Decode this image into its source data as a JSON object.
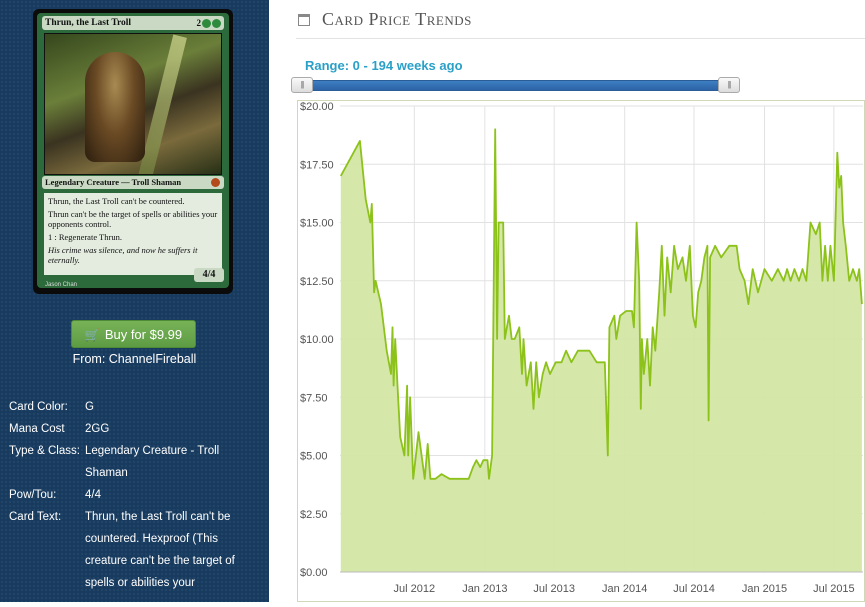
{
  "card": {
    "name": "Thrun, the Last Troll",
    "mana_cost_display": "2",
    "type_line": "Legendary Creature — Troll Shaman",
    "rules_text_1": "Thrun, the Last Troll can't be countered.",
    "rules_text_2": "Thrun can't be the target of spells or abilities your opponents control.",
    "rules_text_3": "1 : Regenerate Thrun.",
    "flavor_text": "His crime was silence, and now he suffers it eternally.",
    "power_toughness": "4/4",
    "artist": "Jason Chan"
  },
  "buy": {
    "label": "Buy for $9.99",
    "icon": "shopping-cart-icon",
    "color": "#6aa84f"
  },
  "from": "From: ChannelFireball",
  "details": [
    {
      "label": "Card Color:",
      "value": "G"
    },
    {
      "label": "Mana Cost",
      "value": "2GG"
    },
    {
      "label": "Type & Class:",
      "value": "Legendary Creature - Troll Shaman"
    },
    {
      "label": "Pow/Tou:",
      "value": "4/4"
    },
    {
      "label": "Card Text:",
      "value": "Thrun, the Last Troll can't be countered. Hexproof (This creature can't be the target of spells or abilities your"
    }
  ],
  "panel": {
    "title": "Card Price Trends",
    "icon": "calendar-icon"
  },
  "range": {
    "label": "Range: 0 - 194 weeks ago",
    "min": 0,
    "max": 194
  },
  "colors": {
    "sidebar": "#173a5e",
    "accent": "#2aa0c8",
    "line": "#8cc21a",
    "fill": "#d3e6a4",
    "button": "#6aa84f"
  },
  "chart_data": {
    "type": "area",
    "title": "",
    "xlabel": "",
    "ylabel": "",
    "ylim": [
      0,
      20
    ],
    "xlim": [
      "2011-12-20",
      "2015-09-15"
    ],
    "y_ticks": [
      "$20.00",
      "$17.50",
      "$15.00",
      "$12.50",
      "$10.00",
      "$7.50",
      "$5.00",
      "$2.50",
      "$0.00"
    ],
    "x_ticks": [
      {
        "label": "Jul 2012",
        "date": "2012-07-01"
      },
      {
        "label": "Jan 2013",
        "date": "2013-01-01"
      },
      {
        "label": "Jul 2013",
        "date": "2013-07-01"
      },
      {
        "label": "Jan 2014",
        "date": "2014-01-01"
      },
      {
        "label": "Jul 2014",
        "date": "2014-07-01"
      },
      {
        "label": "Jan 2015",
        "date": "2015-01-01"
      },
      {
        "label": "Jul 2015",
        "date": "2015-07-01"
      }
    ],
    "grid": true,
    "series": [
      {
        "values": [
          [
            "2011-12-22",
            17.0
          ],
          [
            "2012-02-10",
            18.5
          ],
          [
            "2012-02-25",
            16.0
          ],
          [
            "2012-03-08",
            15.0
          ],
          [
            "2012-03-12",
            15.8
          ],
          [
            "2012-03-18",
            12.0
          ],
          [
            "2012-03-22",
            12.5
          ],
          [
            "2012-04-05",
            11.5
          ],
          [
            "2012-04-20",
            9.5
          ],
          [
            "2012-05-01",
            8.5
          ],
          [
            "2012-05-05",
            10.5
          ],
          [
            "2012-05-08",
            8.0
          ],
          [
            "2012-05-12",
            10.0
          ],
          [
            "2012-05-18",
            8.0
          ],
          [
            "2012-05-25",
            5.8
          ],
          [
            "2012-06-05",
            5.0
          ],
          [
            "2012-06-12",
            8.0
          ],
          [
            "2012-06-15",
            5.0
          ],
          [
            "2012-06-20",
            7.5
          ],
          [
            "2012-06-28",
            4.0
          ],
          [
            "2012-07-05",
            5.0
          ],
          [
            "2012-07-12",
            6.0
          ],
          [
            "2012-07-20",
            5.0
          ],
          [
            "2012-07-28",
            4.0
          ],
          [
            "2012-08-05",
            5.5
          ],
          [
            "2012-08-12",
            4.0
          ],
          [
            "2012-08-25",
            4.0
          ],
          [
            "2012-09-10",
            4.2
          ],
          [
            "2012-10-01",
            4.0
          ],
          [
            "2012-11-01",
            4.0
          ],
          [
            "2012-11-20",
            4.0
          ],
          [
            "2012-12-01",
            4.5
          ],
          [
            "2012-12-10",
            4.8
          ],
          [
            "2012-12-20",
            4.5
          ],
          [
            "2012-12-28",
            4.8
          ],
          [
            "2013-01-08",
            4.8
          ],
          [
            "2013-01-12",
            4.0
          ],
          [
            "2013-01-20",
            5.0
          ],
          [
            "2013-01-28",
            19.0
          ],
          [
            "2013-02-02",
            10.0
          ],
          [
            "2013-02-06",
            15.0
          ],
          [
            "2013-02-18",
            15.0
          ],
          [
            "2013-02-22",
            10.0
          ],
          [
            "2013-03-05",
            11.0
          ],
          [
            "2013-03-12",
            10.0
          ],
          [
            "2013-03-20",
            10.0
          ],
          [
            "2013-04-01",
            10.5
          ],
          [
            "2013-04-08",
            8.5
          ],
          [
            "2013-04-12",
            10.0
          ],
          [
            "2013-04-20",
            8.0
          ],
          [
            "2013-05-01",
            9.0
          ],
          [
            "2013-05-08",
            7.0
          ],
          [
            "2013-05-15",
            9.0
          ],
          [
            "2013-05-22",
            7.5
          ],
          [
            "2013-06-01",
            8.5
          ],
          [
            "2013-06-10",
            9.0
          ],
          [
            "2013-06-20",
            8.5
          ],
          [
            "2013-07-05",
            9.0
          ],
          [
            "2013-07-20",
            9.0
          ],
          [
            "2013-08-01",
            9.5
          ],
          [
            "2013-08-15",
            9.0
          ],
          [
            "2013-09-01",
            9.5
          ],
          [
            "2013-10-01",
            9.5
          ],
          [
            "2013-10-20",
            9.0
          ],
          [
            "2013-11-10",
            9.0
          ],
          [
            "2013-11-18",
            5.0
          ],
          [
            "2013-11-22",
            10.5
          ],
          [
            "2013-12-05",
            11.0
          ],
          [
            "2013-12-10",
            10.0
          ],
          [
            "2013-12-20",
            11.0
          ],
          [
            "2014-01-05",
            11.2
          ],
          [
            "2014-01-20",
            11.2
          ],
          [
            "2014-01-25",
            10.5
          ],
          [
            "2014-02-01",
            15.0
          ],
          [
            "2014-02-08",
            12.5
          ],
          [
            "2014-02-12",
            7.0
          ],
          [
            "2014-02-15",
            10.0
          ],
          [
            "2014-02-20",
            8.5
          ],
          [
            "2014-03-01",
            10.0
          ],
          [
            "2014-03-08",
            8.0
          ],
          [
            "2014-03-15",
            10.5
          ],
          [
            "2014-03-22",
            9.5
          ],
          [
            "2014-04-01",
            12.0
          ],
          [
            "2014-04-08",
            14.0
          ],
          [
            "2014-04-15",
            11.0
          ],
          [
            "2014-04-22",
            13.5
          ],
          [
            "2014-05-01",
            12.0
          ],
          [
            "2014-05-10",
            14.0
          ],
          [
            "2014-05-20",
            13.0
          ],
          [
            "2014-06-01",
            13.5
          ],
          [
            "2014-06-10",
            12.5
          ],
          [
            "2014-06-20",
            14.0
          ],
          [
            "2014-06-28",
            11.0
          ],
          [
            "2014-07-05",
            10.5
          ],
          [
            "2014-07-12",
            12.0
          ],
          [
            "2014-07-20",
            12.5
          ],
          [
            "2014-07-28",
            13.5
          ],
          [
            "2014-08-05",
            14.0
          ],
          [
            "2014-08-08",
            6.5
          ],
          [
            "2014-08-12",
            13.5
          ],
          [
            "2014-08-25",
            14.0
          ],
          [
            "2014-09-10",
            13.5
          ],
          [
            "2014-10-01",
            14.0
          ],
          [
            "2014-10-20",
            14.0
          ],
          [
            "2014-10-28",
            13.0
          ],
          [
            "2014-11-10",
            12.5
          ],
          [
            "2014-11-20",
            11.5
          ],
          [
            "2014-12-01",
            13.0
          ],
          [
            "2014-12-15",
            12.0
          ],
          [
            "2015-01-01",
            13.0
          ],
          [
            "2015-01-20",
            12.5
          ],
          [
            "2015-02-05",
            13.0
          ],
          [
            "2015-02-20",
            12.5
          ],
          [
            "2015-03-01",
            13.0
          ],
          [
            "2015-03-10",
            12.5
          ],
          [
            "2015-03-20",
            13.0
          ],
          [
            "2015-04-01",
            12.5
          ],
          [
            "2015-04-10",
            13.0
          ],
          [
            "2015-04-20",
            12.5
          ],
          [
            "2015-05-01",
            15.0
          ],
          [
            "2015-05-15",
            14.5
          ],
          [
            "2015-05-25",
            15.0
          ],
          [
            "2015-06-01",
            12.5
          ],
          [
            "2015-06-08",
            14.0
          ],
          [
            "2015-06-15",
            12.5
          ],
          [
            "2015-06-22",
            14.0
          ],
          [
            "2015-07-01",
            12.5
          ],
          [
            "2015-07-10",
            18.0
          ],
          [
            "2015-07-15",
            16.5
          ],
          [
            "2015-07-20",
            17.0
          ],
          [
            "2015-07-25",
            15.0
          ],
          [
            "2015-08-01",
            14.0
          ],
          [
            "2015-08-10",
            12.5
          ],
          [
            "2015-08-20",
            13.0
          ],
          [
            "2015-08-30",
            12.5
          ],
          [
            "2015-09-05",
            13.0
          ],
          [
            "2015-09-12",
            11.5
          ]
        ]
      }
    ]
  }
}
